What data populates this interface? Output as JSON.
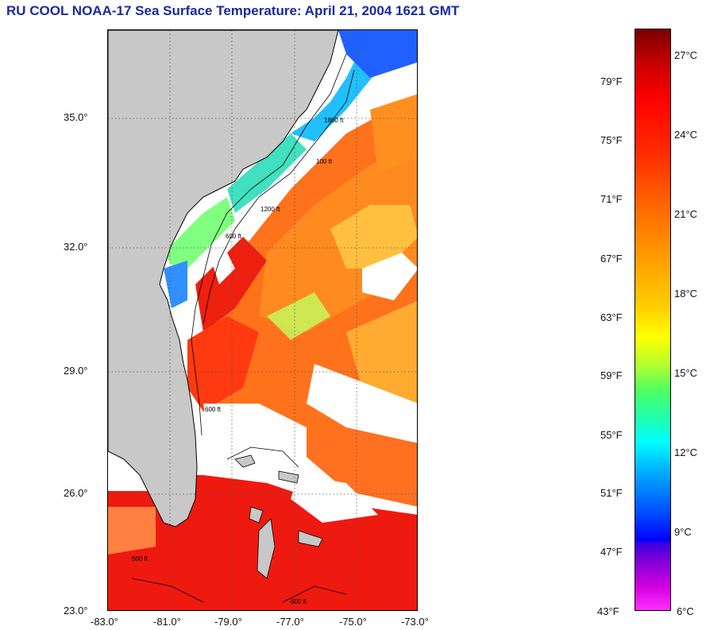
{
  "title": "RU COOL  NOAA-17  Sea Surface Temperature:  April 21, 2004 1621 GMT",
  "map": {
    "lat_ticks": [
      "35.0°",
      "32.0°",
      "29.0°",
      "26.0°",
      "23.0°"
    ],
    "lon_ticks": [
      "-83.0°",
      "-81.0°",
      "-79.0°",
      "-77.0°",
      "-75.0°",
      "-73.0°"
    ],
    "contour_labels": [
      "100 ft",
      "600 ft",
      "1200 ft",
      "1800 ft",
      "600 ft",
      "600 ft",
      "600 ft"
    ],
    "colors": {
      "land": "#c8c8c8",
      "cloud": "#ffffff",
      "warm": "#ff5a10",
      "hot": "#ee1010"
    }
  },
  "colorbar": {
    "celsius_labels": [
      "27°C",
      "24°C",
      "21°C",
      "18°C",
      "15°C",
      "12°C",
      "9°C",
      "6°C"
    ],
    "fahrenheit_labels": [
      "79°F",
      "75°F",
      "71°F",
      "67°F",
      "63°F",
      "59°F",
      "55°F",
      "51°F",
      "47°F",
      "43°F"
    ],
    "min_celsius": 6,
    "max_celsius": 28
  }
}
